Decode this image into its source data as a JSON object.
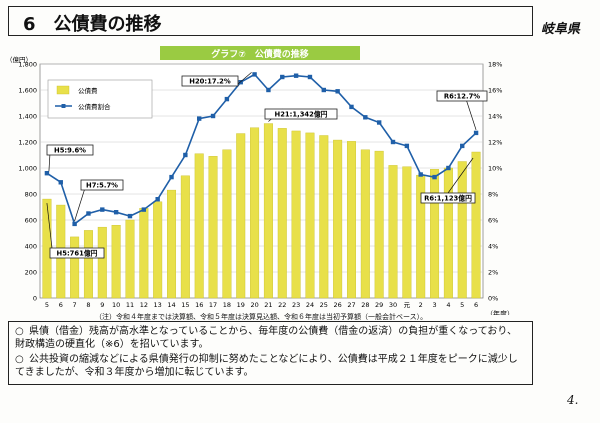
{
  "header": {
    "title": "6　公債費の推移",
    "pref_mark": "岐阜県"
  },
  "chart_data": {
    "type": "bar",
    "title": "グラフ⑦　公債費の推移",
    "y_left_unit": "（億円）",
    "y_right_unit": "",
    "x_unit": "（年度）",
    "categories": [
      "5",
      "6",
      "7",
      "8",
      "9",
      "10",
      "11",
      "12",
      "13",
      "14",
      "15",
      "16",
      "17",
      "18",
      "19",
      "20",
      "21",
      "22",
      "23",
      "24",
      "25",
      "26",
      "27",
      "28",
      "29",
      "30",
      "元",
      "2",
      "3",
      "4",
      "5",
      "6"
    ],
    "y_left_ticks": [
      "0",
      "200",
      "400",
      "600",
      "800",
      "1,000",
      "1,200",
      "1,400",
      "1,600",
      "1,800"
    ],
    "y_right_ticks": [
      "0%",
      "2%",
      "4%",
      "6%",
      "8%",
      "10%",
      "12%",
      "14%",
      "16%",
      "18%"
    ],
    "ylim": [
      0,
      1800
    ],
    "y2lim": [
      0,
      18
    ],
    "series": [
      {
        "name": "公債費",
        "type": "bar",
        "color": "#e8e04a",
        "values": [
          761,
          715,
          470,
          520,
          545,
          560,
          600,
          690,
          740,
          830,
          940,
          1110,
          1090,
          1140,
          1265,
          1310,
          1342,
          1305,
          1285,
          1270,
          1250,
          1215,
          1205,
          1140,
          1130,
          1020,
          1010,
          945,
          990,
          1000,
          1050,
          1123
        ]
      },
      {
        "name": "公債費割合",
        "type": "line",
        "color": "#1f5fa8",
        "values": [
          9.6,
          8.9,
          5.7,
          6.5,
          6.8,
          6.6,
          6.3,
          6.8,
          7.6,
          9.3,
          11.0,
          13.8,
          14.0,
          15.3,
          16.6,
          17.2,
          16.0,
          17.0,
          17.1,
          17.0,
          16.0,
          15.9,
          14.7,
          13.9,
          13.5,
          12.0,
          11.7,
          9.5,
          9.3,
          10.0,
          11.7,
          12.7
        ]
      }
    ],
    "annotations": [
      "H20:17.2%",
      "H21:1,342億円",
      "R6:12.7%",
      "H5:9.6%",
      "H7:5.7%",
      "R6:1,123億円",
      "H5:761億円"
    ]
  },
  "note": "（注）令和４年度までは決算額、令和５年度は決算見込額、令和６年度は当初予算額（一般会計ベース）。",
  "bullets": [
    {
      "mark": "○",
      "text": "県債（借金）残高が高水準となっていることから、毎年度の公債費（借金の返済）の負担が重くなっており、財政構造の硬直化（※6）を招いています。"
    },
    {
      "mark": "○",
      "text": "公共投資の縮減などによる県債発行の抑制に努めたことなどにより、公債費は平成２１年度をピークに減少してきましたが、令和３年度から増加に転じています。"
    }
  ],
  "page_number": "4."
}
